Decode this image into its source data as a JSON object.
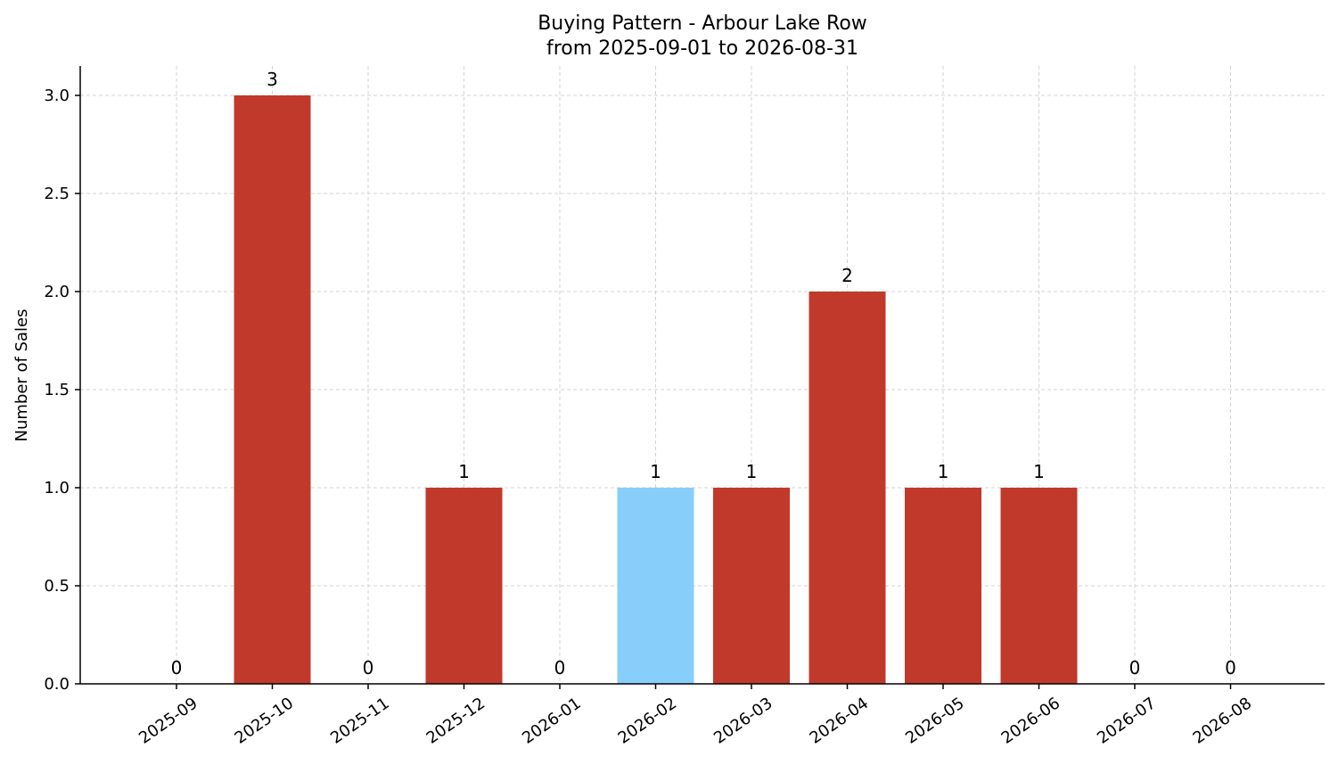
{
  "chart_data": {
    "type": "bar",
    "title": "Buying Pattern - Arbour Lake Row",
    "subtitle": "from 2025-09-01 to 2026-08-31",
    "xlabel": "",
    "ylabel": "Number of Sales",
    "categories": [
      "2025-09",
      "2025-10",
      "2025-11",
      "2025-12",
      "2026-01",
      "2026-02",
      "2026-03",
      "2026-04",
      "2026-05",
      "2026-06",
      "2026-07",
      "2026-08"
    ],
    "values": [
      0,
      3,
      0,
      1,
      0,
      1,
      1,
      2,
      1,
      1,
      0,
      0
    ],
    "highlight_category": "2026-02",
    "ylim": [
      0,
      3.15
    ],
    "yticks": [
      "0.0",
      "0.5",
      "1.0",
      "1.5",
      "2.0",
      "2.5",
      "3.0"
    ],
    "grid": true,
    "colors": {
      "bar": "#c0392b",
      "highlight": "#87cefa",
      "grid": "#d3d3d3",
      "axis": "#000000"
    }
  }
}
